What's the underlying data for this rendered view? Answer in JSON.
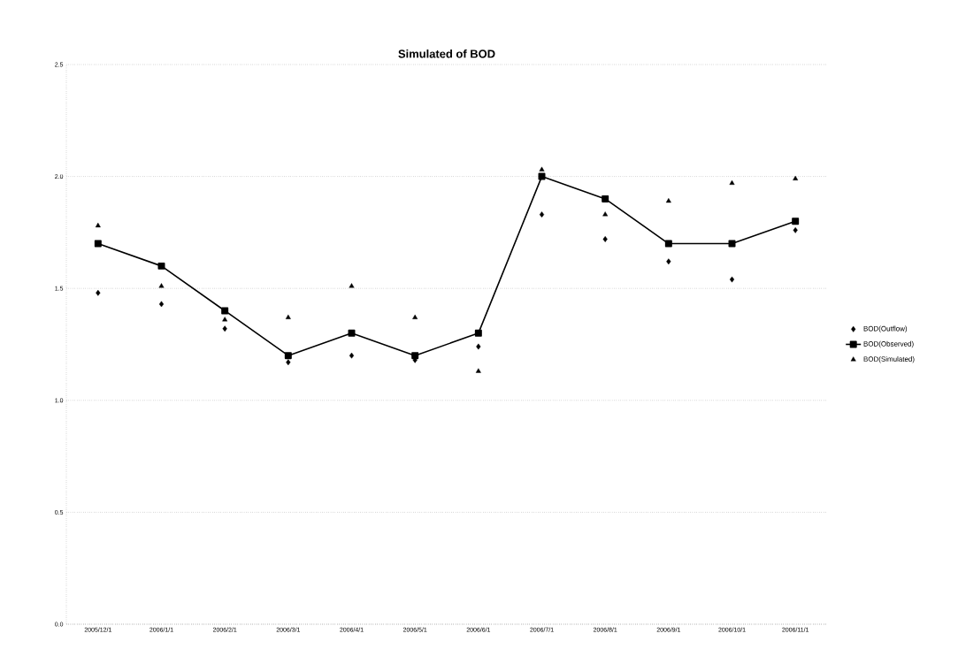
{
  "chart_data": {
    "type": "line",
    "title": "Simulated of BOD",
    "categories": [
      "2005/12/1",
      "2006/1/1",
      "2006/2/1",
      "2006/3/1",
      "2006/4/1",
      "2006/5/1",
      "2006/6/1",
      "2006/7/1",
      "2006/8/1",
      "2006/9/1",
      "2006/10/1",
      "2006/11/1"
    ],
    "series": [
      {
        "name": "BOD(Outflow)",
        "type": "scatter",
        "marker": "diamond",
        "color": "#000000",
        "values": [
          1.48,
          1.43,
          1.32,
          1.17,
          1.2,
          1.18,
          1.24,
          1.83,
          1.72,
          1.62,
          1.54,
          1.76
        ]
      },
      {
        "name": "BOD(Observed)",
        "marker": "square",
        "color": "#000000",
        "values": [
          1.7,
          1.6,
          1.4,
          1.2,
          1.3,
          1.2,
          1.3,
          2.0,
          1.9,
          1.7,
          1.7,
          1.8
        ]
      },
      {
        "name": "BOD(Simulated)",
        "type": "scatter",
        "marker": "triangle",
        "color": "#000000",
        "values": [
          1.78,
          1.51,
          1.36,
          1.37,
          1.51,
          1.37,
          1.13,
          2.03,
          1.83,
          1.89,
          1.97,
          1.99
        ]
      }
    ],
    "ylim": [
      0,
      2.5
    ],
    "yticks": [
      {
        "value": 0,
        "label": "0.0"
      },
      {
        "value": 0.5,
        "label": "0.5"
      },
      {
        "value": 1,
        "label": "1.0"
      },
      {
        "value": 1.5,
        "label": "1.5"
      },
      {
        "value": 2,
        "label": "2.0"
      },
      {
        "value": 2.5,
        "label": "2.5"
      }
    ],
    "grid": "y",
    "legend": "right"
  }
}
